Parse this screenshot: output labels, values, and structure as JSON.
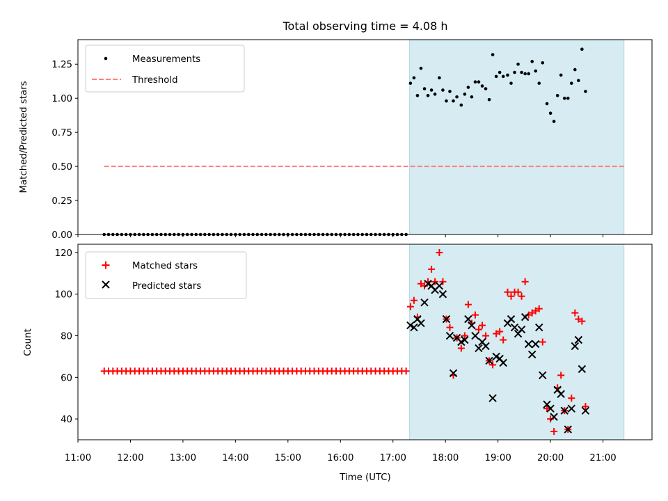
{
  "chart_data": {
    "title": "Total observing time = 4.08 h",
    "xlabel": "Time (UTC)",
    "xlim": [
      "11:00",
      "21:56"
    ],
    "xticks": [
      "11:00",
      "12:00",
      "13:00",
      "14:00",
      "15:00",
      "16:00",
      "17:00",
      "18:00",
      "19:00",
      "20:00",
      "21:00"
    ],
    "shaded_interval": {
      "start": "17:19",
      "end": "21:24",
      "color": "#add8e6"
    },
    "panels": [
      {
        "type": "scatter",
        "ylabel": "Matched/Predicted stars",
        "ylim": [
          0,
          1.43
        ],
        "yticks": [
          "0.00",
          "0.25",
          "0.50",
          "0.75",
          "1.00",
          "1.25"
        ],
        "legend": {
          "position": "top-left",
          "entries": [
            "Measurements",
            "Threshold"
          ]
        },
        "threshold": {
          "name": "Threshold",
          "value": 0.5,
          "x_start": "11:30",
          "x_end": "21:24",
          "color": "#ff7f7f",
          "style": "dashed"
        },
        "series": [
          {
            "name": "Measurements",
            "color": "#000000",
            "marker": "dot",
            "zero_run": {
              "x_start": "11:30",
              "x_end": "17:15",
              "count": 70,
              "value": 0
            },
            "points": [
              [
                "17:20",
                1.11
              ],
              [
                "17:24",
                1.15
              ],
              [
                "17:28",
                1.02
              ],
              [
                "17:32",
                1.22
              ],
              [
                "17:36",
                1.07
              ],
              [
                "17:40",
                1.02
              ],
              [
                "17:44",
                1.06
              ],
              [
                "17:48",
                1.03
              ],
              [
                "17:53",
                1.15
              ],
              [
                "17:57",
                1.06
              ],
              [
                "18:01",
                0.98
              ],
              [
                "18:05",
                1.05
              ],
              [
                "18:09",
                0.98
              ],
              [
                "18:13",
                1.01
              ],
              [
                "18:18",
                0.95
              ],
              [
                "18:22",
                1.03
              ],
              [
                "18:26",
                1.08
              ],
              [
                "18:30",
                1.01
              ],
              [
                "18:34",
                1.12
              ],
              [
                "18:38",
                1.12
              ],
              [
                "18:42",
                1.09
              ],
              [
                "18:46",
                1.07
              ],
              [
                "18:50",
                0.99
              ],
              [
                "18:54",
                1.32
              ],
              [
                "18:58",
                1.16
              ],
              [
                "19:02",
                1.19
              ],
              [
                "19:06",
                1.16
              ],
              [
                "19:11",
                1.17
              ],
              [
                "19:15",
                1.11
              ],
              [
                "19:19",
                1.19
              ],
              [
                "19:23",
                1.25
              ],
              [
                "19:27",
                1.19
              ],
              [
                "19:31",
                1.18
              ],
              [
                "19:35",
                1.18
              ],
              [
                "19:39",
                1.27
              ],
              [
                "19:43",
                1.2
              ],
              [
                "19:47",
                1.11
              ],
              [
                "19:51",
                1.26
              ],
              [
                "19:56",
                0.96
              ],
              [
                "20:00",
                0.89
              ],
              [
                "20:04",
                0.83
              ],
              [
                "20:08",
                1.02
              ],
              [
                "20:12",
                1.17
              ],
              [
                "20:16",
                1.0
              ],
              [
                "20:20",
                1.0
              ],
              [
                "20:24",
                1.11
              ],
              [
                "20:28",
                1.21
              ],
              [
                "20:32",
                1.13
              ],
              [
                "20:36",
                1.36
              ],
              [
                "20:40",
                1.05
              ]
            ]
          }
        ]
      },
      {
        "type": "scatter",
        "ylabel": "Count",
        "ylim": [
          30,
          124
        ],
        "yticks": [
          "40",
          "60",
          "80",
          "100",
          "120"
        ],
        "legend": {
          "position": "top-left",
          "entries": [
            "Matched stars",
            "Predicted stars"
          ]
        },
        "series": [
          {
            "name": "Matched stars",
            "color": "#ff0000",
            "marker": "plus",
            "flat_run": {
              "x_start": "11:30",
              "x_end": "17:15",
              "count": 70,
              "value": 63
            },
            "points": [
              [
                "17:20",
                94
              ],
              [
                "17:24",
                97
              ],
              [
                "17:28",
                89
              ],
              [
                "17:32",
                105
              ],
              [
                "17:36",
                104
              ],
              [
                "17:40",
                106
              ],
              [
                "17:44",
                112
              ],
              [
                "17:48",
                106
              ],
              [
                "17:53",
                120
              ],
              [
                "17:57",
                106
              ],
              [
                "18:01",
                88
              ],
              [
                "18:05",
                84
              ],
              [
                "18:09",
                61
              ],
              [
                "18:13",
                79
              ],
              [
                "18:18",
                74
              ],
              [
                "18:22",
                80
              ],
              [
                "18:26",
                95
              ],
              [
                "18:30",
                86
              ],
              [
                "18:34",
                90
              ],
              [
                "18:38",
                83
              ],
              [
                "18:42",
                85
              ],
              [
                "18:46",
                80
              ],
              [
                "18:50",
                68
              ],
              [
                "18:54",
                66
              ],
              [
                "18:58",
                81
              ],
              [
                "19:02",
                82
              ],
              [
                "19:06",
                78
              ],
              [
                "19:11",
                101
              ],
              [
                "19:15",
                99
              ],
              [
                "19:19",
                101
              ],
              [
                "19:23",
                101
              ],
              [
                "19:27",
                99
              ],
              [
                "19:31",
                106
              ],
              [
                "19:35",
                90
              ],
              [
                "19:39",
                91
              ],
              [
                "19:43",
                92
              ],
              [
                "19:47",
                93
              ],
              [
                "19:51",
                77
              ],
              [
                "19:56",
                45
              ],
              [
                "20:00",
                40
              ],
              [
                "20:04",
                34
              ],
              [
                "20:08",
                55
              ],
              [
                "20:12",
                61
              ],
              [
                "20:16",
                44
              ],
              [
                "20:20",
                35
              ],
              [
                "20:24",
                50
              ],
              [
                "20:28",
                91
              ],
              [
                "20:32",
                88
              ],
              [
                "20:36",
                87
              ],
              [
                "20:40",
                46
              ]
            ]
          },
          {
            "name": "Predicted stars",
            "color": "#000000",
            "marker": "x",
            "points": [
              [
                "17:20",
                85
              ],
              [
                "17:24",
                84
              ],
              [
                "17:28",
                88
              ],
              [
                "17:32",
                86
              ],
              [
                "17:36",
                96
              ],
              [
                "17:40",
                105
              ],
              [
                "17:44",
                104
              ],
              [
                "17:48",
                102
              ],
              [
                "17:53",
                104
              ],
              [
                "17:57",
                100
              ],
              [
                "18:01",
                88
              ],
              [
                "18:05",
                80
              ],
              [
                "18:09",
                62
              ],
              [
                "18:13",
                79
              ],
              [
                "18:18",
                77
              ],
              [
                "18:22",
                78
              ],
              [
                "18:26",
                88
              ],
              [
                "18:30",
                85
              ],
              [
                "18:34",
                80
              ],
              [
                "18:38",
                74
              ],
              [
                "18:42",
                77
              ],
              [
                "18:46",
                75
              ],
              [
                "18:50",
                68
              ],
              [
                "18:54",
                50
              ],
              [
                "18:58",
                70
              ],
              [
                "19:02",
                69
              ],
              [
                "19:06",
                67
              ],
              [
                "19:11",
                86
              ],
              [
                "19:15",
                88
              ],
              [
                "19:19",
                84
              ],
              [
                "19:23",
                81
              ],
              [
                "19:27",
                83
              ],
              [
                "19:31",
                89
              ],
              [
                "19:35",
                76
              ],
              [
                "19:39",
                71
              ],
              [
                "19:43",
                76
              ],
              [
                "19:47",
                84
              ],
              [
                "19:51",
                61
              ],
              [
                "19:56",
                47
              ],
              [
                "20:00",
                45
              ],
              [
                "20:04",
                41
              ],
              [
                "20:08",
                54
              ],
              [
                "20:12",
                52
              ],
              [
                "20:16",
                44
              ],
              [
                "20:20",
                35
              ],
              [
                "20:24",
                45
              ],
              [
                "20:28",
                75
              ],
              [
                "20:32",
                78
              ],
              [
                "20:36",
                64
              ],
              [
                "20:40",
                44
              ]
            ]
          }
        ]
      }
    ]
  }
}
